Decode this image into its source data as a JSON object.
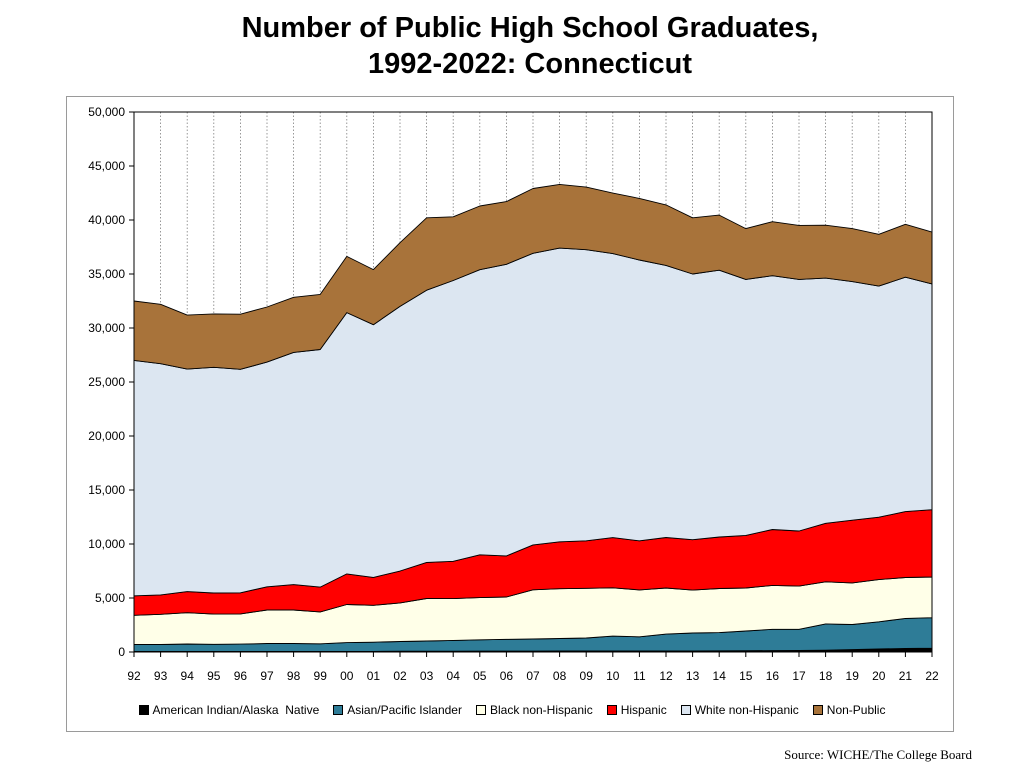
{
  "title_line1": "Number of Public High School Graduates,",
  "title_line2": "1992-2022:  Connecticut",
  "source": "Source: WICHE/The College Board",
  "chart_data": {
    "type": "area",
    "stacked": true,
    "title": "Number of Public High School Graduates, 1992-2022: Connecticut",
    "xlabel": "",
    "ylabel": "",
    "ylim": [
      0,
      50000
    ],
    "yticks": [
      0,
      5000,
      10000,
      15000,
      20000,
      25000,
      30000,
      35000,
      40000,
      45000,
      50000
    ],
    "ytick_labels": [
      "0",
      "5,000",
      "10,000",
      "15,000",
      "20,000",
      "25,000",
      "30,000",
      "35,000",
      "40,000",
      "45,000",
      "50,000"
    ],
    "categories": [
      "92",
      "93",
      "94",
      "95",
      "96",
      "97",
      "98",
      "99",
      "00",
      "01",
      "02",
      "03",
      "04",
      "05",
      "06",
      "07",
      "08",
      "09",
      "10",
      "11",
      "12",
      "13",
      "14",
      "15",
      "16",
      "17",
      "18",
      "19",
      "20",
      "21",
      "22"
    ],
    "grid": "vertical dotted",
    "legend_position": "bottom",
    "series": [
      {
        "name": "American Indian/Alaska  Native",
        "color": "#000000",
        "values": [
          50,
          50,
          50,
          50,
          50,
          60,
          60,
          60,
          60,
          60,
          70,
          70,
          70,
          80,
          80,
          80,
          90,
          90,
          90,
          90,
          100,
          100,
          110,
          120,
          130,
          140,
          170,
          220,
          280,
          330,
          350
        ]
      },
      {
        "name": "Asian/Pacific Islander",
        "color": "#2e7c97",
        "values": [
          650,
          640,
          690,
          660,
          680,
          730,
          730,
          700,
          810,
          850,
          900,
          950,
          1000,
          1050,
          1100,
          1120,
          1160,
          1210,
          1380,
          1320,
          1560,
          1660,
          1690,
          1820,
          1970,
          1960,
          2430,
          2330,
          2520,
          2780,
          2830
        ]
      },
      {
        "name": "Black non-Hispanic",
        "color": "#ffffe8",
        "values": [
          2700,
          2800,
          2900,
          2800,
          2800,
          3100,
          3100,
          2950,
          3530,
          3410,
          3580,
          3930,
          3870,
          3910,
          3910,
          4560,
          4610,
          4600,
          4470,
          4340,
          4270,
          3970,
          4080,
          3990,
          4070,
          4000,
          3900,
          3850,
          3900,
          3790,
          3760
        ]
      },
      {
        "name": "Hispanic",
        "color": "#ff0000",
        "values": [
          1800,
          1800,
          1950,
          1950,
          1950,
          2150,
          2350,
          2300,
          2830,
          2590,
          2950,
          3350,
          3460,
          3960,
          3810,
          4160,
          4340,
          4400,
          4650,
          4550,
          4670,
          4670,
          4770,
          4870,
          5170,
          5100,
          5420,
          5800,
          5780,
          6100,
          6240
        ]
      },
      {
        "name": "White non-Hispanic",
        "color": "#dce6f1",
        "values": [
          21800,
          21400,
          20600,
          20900,
          20700,
          20800,
          21500,
          22000,
          24200,
          23400,
          24500,
          25200,
          26000,
          26400,
          27000,
          27000,
          27200,
          26950,
          26300,
          26000,
          25200,
          24600,
          24700,
          23700,
          23500,
          23300,
          22700,
          22100,
          21400,
          21700,
          20900
        ]
      },
      {
        "name": "Non-Public",
        "color": "#a8733a",
        "values": [
          5500,
          5500,
          5000,
          4950,
          5100,
          5100,
          5100,
          5100,
          5200,
          5100,
          5900,
          6700,
          5900,
          5900,
          5800,
          6000,
          5900,
          5800,
          5600,
          5700,
          5600,
          5200,
          5100,
          4700,
          5000,
          5000,
          4900,
          4900,
          4800,
          4900,
          4800
        ]
      }
    ]
  }
}
